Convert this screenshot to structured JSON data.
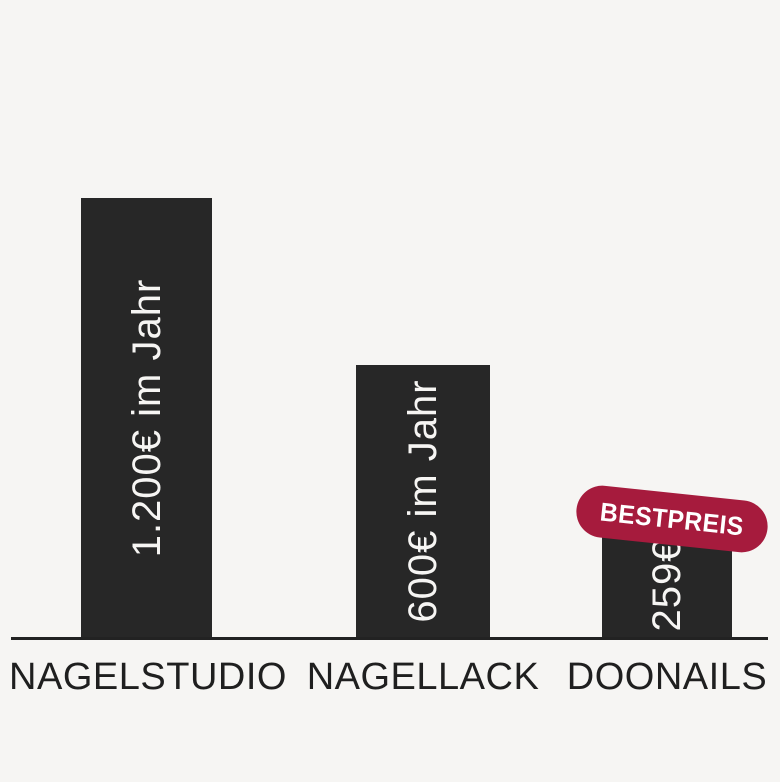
{
  "colors": {
    "background": "#F6F5F3",
    "bar": "#272727",
    "bar-text": "#F6F5F3",
    "axis": "#222222",
    "label": "#1F1F1F",
    "badge": "#A61B3D",
    "badge-text": "#FFFFFF"
  },
  "badge": {
    "label": "BESTPREIS"
  },
  "chart_data": {
    "type": "bar",
    "title": "",
    "categories": [
      "NAGELSTUDIO",
      "NAGELLACK",
      "DOONAILS"
    ],
    "values": [
      1200,
      600,
      259
    ],
    "value_labels": [
      "1.200€ im Jahr",
      "600€ im Jahr",
      "259€"
    ],
    "unit": "EUR per year",
    "xlabel": "",
    "ylabel": "",
    "grid": false,
    "legend": "none",
    "annotations": [
      {
        "target": "DOONAILS",
        "text": "BESTPREIS",
        "style": "rotated crimson pill over bar top"
      }
    ],
    "bar_label_orientation": "vertical-bottom-to-top",
    "axis_baseline": true
  }
}
